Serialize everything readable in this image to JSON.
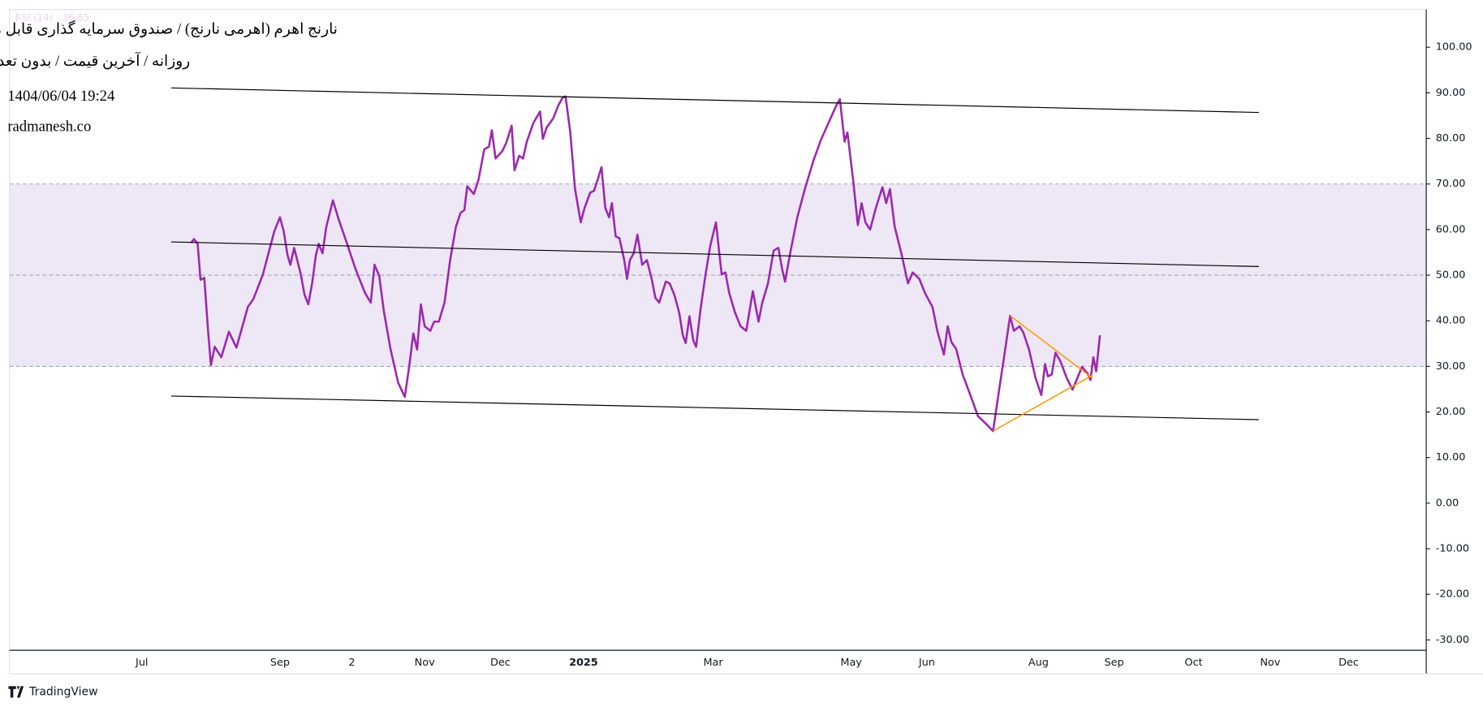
{
  "chart_data": {
    "type": "line",
    "title": "نارنج اهرم (اهرمی نارنج) / صندوق سرمایه گذاری قابل معامله",
    "subtitle": "روزانه / آخرین قیمت / بدون تعدیل",
    "timestamp": "1404/06/04 19:24",
    "source": "radmanesh.co",
    "branding": "TradingView",
    "last_value": 36.65,
    "band": [
      30,
      70
    ],
    "levels": [
      70,
      50,
      30
    ],
    "band_color": "#ede7f6",
    "xlim": [
      0,
      1498
    ],
    "ylim": [
      -32.28,
      108.29
    ],
    "xticks": [
      {
        "value": 140,
        "label": "Jul"
      },
      {
        "value": 286,
        "label": "Sep"
      },
      {
        "value": 362,
        "label": "2"
      },
      {
        "value": 439,
        "label": "Nov"
      },
      {
        "value": 519,
        "label": "Dec"
      },
      {
        "value": 607,
        "label": "2025"
      },
      {
        "value": 744,
        "label": "Mar"
      },
      {
        "value": 890,
        "label": "May"
      },
      {
        "value": 970,
        "label": "Jun"
      },
      {
        "value": 1088,
        "label": "Aug"
      },
      {
        "value": 1168,
        "label": "Sep"
      },
      {
        "value": 1252,
        "label": "Oct"
      },
      {
        "value": 1333,
        "label": "Nov"
      },
      {
        "value": 1416,
        "label": "Dec"
      }
    ],
    "yticks": [
      {
        "value": 100,
        "label": "100.00"
      },
      {
        "value": 90,
        "label": "90.00"
      },
      {
        "value": 80,
        "label": "80.00"
      },
      {
        "value": 70,
        "label": "70.00"
      },
      {
        "value": 60,
        "label": "60.00"
      },
      {
        "value": 50,
        "label": "50.00"
      },
      {
        "value": 40,
        "label": "40.00"
      },
      {
        "value": 30,
        "label": "30.00"
      },
      {
        "value": 20,
        "label": "20.00"
      },
      {
        "value": 10,
        "label": "10.00"
      },
      {
        "value": 0,
        "label": "0.00"
      },
      {
        "value": -10,
        "label": "-10.00"
      },
      {
        "value": -20,
        "label": "-20.00"
      },
      {
        "value": -30,
        "label": "-30.00"
      }
    ],
    "x": [
      192,
      195,
      199,
      202,
      206,
      210,
      213,
      217,
      224,
      232,
      240,
      252,
      258,
      268,
      280,
      286,
      290,
      294,
      297,
      301,
      308,
      312,
      316,
      320,
      324,
      327,
      331,
      335,
      342,
      348,
      356,
      366,
      376,
      382,
      386,
      391,
      396,
      403,
      411,
      418,
      423,
      427,
      431,
      435,
      439,
      445,
      449,
      454,
      460,
      466,
      472,
      477,
      481,
      484,
      491,
      496,
      502,
      507,
      510,
      514,
      521,
      525,
      531,
      534,
      539,
      543,
      547,
      554,
      561,
      564,
      568,
      575,
      580,
      585,
      588,
      593,
      598,
      604,
      608,
      614,
      618,
      622,
      626,
      630,
      634,
      637,
      641,
      645,
      650,
      653,
      656,
      660,
      664,
      669,
      674,
      679,
      683,
      687,
      694,
      698,
      703,
      708,
      712,
      715,
      719,
      723,
      726,
      731,
      736,
      741,
      747,
      753,
      757,
      761,
      767,
      773,
      779,
      786,
      792,
      796,
      799,
      802,
      808,
      813,
      817,
      820,
      826,
      833,
      841,
      850,
      858,
      866,
      874,
      878,
      883,
      886,
      892,
      897,
      901,
      905,
      910,
      916,
      923,
      927,
      931,
      936,
      943,
      950,
      955,
      962,
      968,
      976,
      981,
      988,
      992,
      996,
      1001,
      1008,
      1016,
      1024,
      1032,
      1040,
      1046,
      1052,
      1058,
      1062,
      1068,
      1072,
      1078,
      1085,
      1091,
      1095,
      1098,
      1102,
      1106,
      1111,
      1118,
      1124,
      1129,
      1134,
      1140,
      1143,
      1146,
      1149,
      1153
    ],
    "series": [
      {
        "name": "RSI (14)",
        "color": "#9c27b0",
        "values": [
          57.1,
          57.9,
          56.9,
          49,
          49.4,
          37.8,
          30.3,
          34.3,
          32,
          37.6,
          34.1,
          43,
          44.8,
          50.2,
          59.6,
          62.7,
          59.6,
          54.4,
          52.3,
          56,
          50.2,
          45.7,
          43.6,
          48.2,
          54.4,
          56.9,
          54.8,
          60.6,
          66.4,
          62.3,
          57.5,
          51.3,
          46.1,
          44,
          52.3,
          49.8,
          41.9,
          33.7,
          26.4,
          23.3,
          30.5,
          37.2,
          33.7,
          43.6,
          38.8,
          37.8,
          39.8,
          39.8,
          44,
          53.4,
          60.6,
          63.7,
          64.3,
          69.5,
          67.8,
          71,
          77.6,
          78.2,
          81.8,
          75.6,
          77.2,
          78.9,
          82.8,
          73,
          76.2,
          75.6,
          79.3,
          83.4,
          85.9,
          79.9,
          82.4,
          84.4,
          87.1,
          89,
          89.2,
          81.3,
          68.9,
          61.6,
          64.7,
          68.1,
          68.5,
          71,
          73.7,
          64.7,
          62.7,
          65.8,
          58.5,
          58.1,
          53.3,
          49.2,
          53.3,
          54.8,
          58.9,
          52.3,
          53.3,
          49.2,
          45,
          44,
          48.6,
          48.2,
          45.7,
          41.9,
          36.8,
          35.1,
          41,
          35.7,
          34.3,
          43,
          50.2,
          56.5,
          61.6,
          50.2,
          50.6,
          46.1,
          41.9,
          38.8,
          37.8,
          46.5,
          39.8,
          44,
          46.1,
          48.2,
          55.4,
          56,
          51.3,
          48.6,
          55.4,
          62.7,
          68.9,
          75.1,
          79.7,
          83.4,
          87.1,
          88.6,
          79.3,
          81.3,
          71,
          61,
          65.8,
          61.6,
          60,
          64.7,
          69.3,
          65.8,
          68.9,
          60.6,
          54.8,
          48.2,
          50.6,
          49.2,
          46.1,
          43,
          37.8,
          32.6,
          38.8,
          35.3,
          33.8,
          28.1,
          23.7,
          19.1,
          17.5,
          15.8,
          24.3,
          32.6,
          41.1,
          37.8,
          38.8,
          37.4,
          33.7,
          27.4,
          23.7,
          30.5,
          27.8,
          28.2,
          33,
          31.2,
          27.4,
          24.9,
          27.4,
          29.9,
          28.4,
          27,
          32,
          28.9,
          36.8
        ]
      }
    ]
  }
}
